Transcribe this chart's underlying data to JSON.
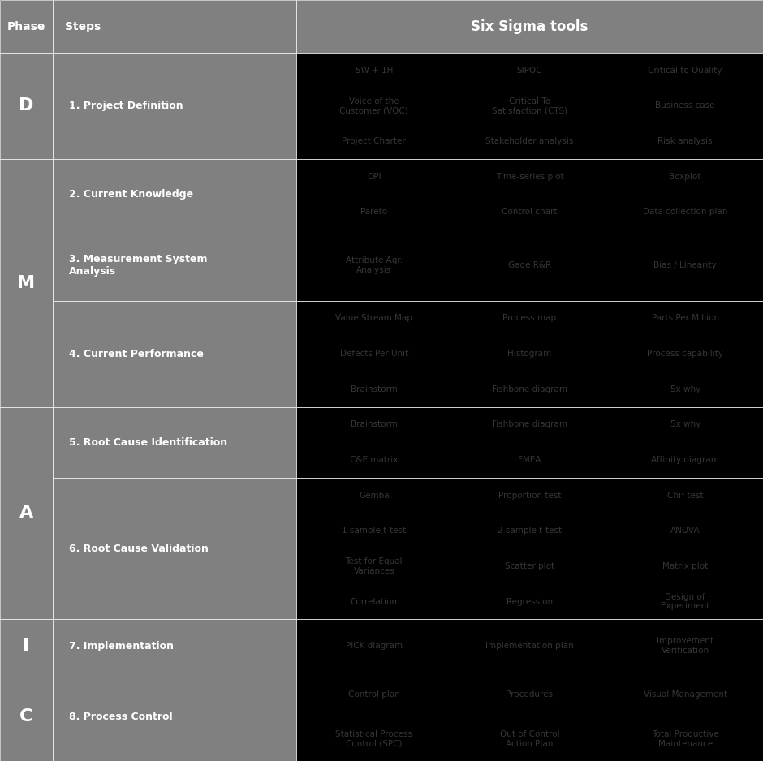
{
  "title": "Six Sigma DMAIC - Table of Tools",
  "header_bg": "#808080",
  "cell_bg_left": "#808080",
  "cell_bg_right": "#000000",
  "text_color_light": "#ffffff",
  "text_color_dark": "#555555",
  "fig_bg": "#000000",
  "phases": [
    "D",
    "M",
    "A",
    "I",
    "C"
  ],
  "steps": [
    "1. Project Definition",
    "2. Current Knowledge",
    "3. Measurement System\nAnalysis",
    "4. Current Performance",
    "5. Root Cause Identification",
    "6. Root Cause Validation",
    "7. Implementation",
    "8. Process Control"
  ],
  "phase_spans": [
    {
      "phase": "D",
      "step_indices": [
        0
      ]
    },
    {
      "phase": "M",
      "step_indices": [
        1,
        2,
        3
      ]
    },
    {
      "phase": "A",
      "step_indices": [
        4,
        5
      ]
    },
    {
      "phase": "I",
      "step_indices": [
        6
      ]
    },
    {
      "phase": "C",
      "step_indices": [
        7
      ]
    }
  ],
  "tools_by_step": [
    [
      "5W + 1H",
      "SIPOC",
      "Critical to Quality",
      "Voice of the\nCustomer (VOC)",
      "Critical To\nSatisfaction (CTS)",
      "Business case",
      "Project Charter",
      "Stakeholder analysis",
      "Risk analysis"
    ],
    [
      "OPI",
      "Time-series plot",
      "Boxplot",
      "Pareto",
      "Control chart",
      "Data collection plan"
    ],
    [
      "Attribute Agr.\nAnalysis",
      "Gage R&R",
      "Bias / Linearity"
    ],
    [
      "Value Stream Map",
      "Process map",
      "Parts Per Million",
      "Defects Per Unit",
      "Histogram",
      "Process capability",
      "Brainstorm",
      "Fishbone diagram",
      "5x why"
    ],
    [
      "Brainstorm",
      "Fishbone diagram",
      "5x why",
      "C&E matrix",
      "FMEA",
      "Affinity diagram"
    ],
    [
      "Gemba",
      "Proportion test",
      "Chi² test",
      "1 sample t-test",
      "2 sample t-test",
      "ANOVA",
      "Test for Equal\nVariances",
      "Scatter plot",
      "Matrix plot",
      "Correlation",
      "Regression",
      "Design of\nExperiment"
    ],
    [
      "PICK diagram",
      "Implementation plan",
      "Improvement\nVerification"
    ],
    [
      "Control plan",
      "Procedures",
      "Visual Management",
      "Statistical Process\nControl (SPC)",
      "Out of Control\nAction Plan",
      "Total Productive\nMaintenance"
    ]
  ]
}
